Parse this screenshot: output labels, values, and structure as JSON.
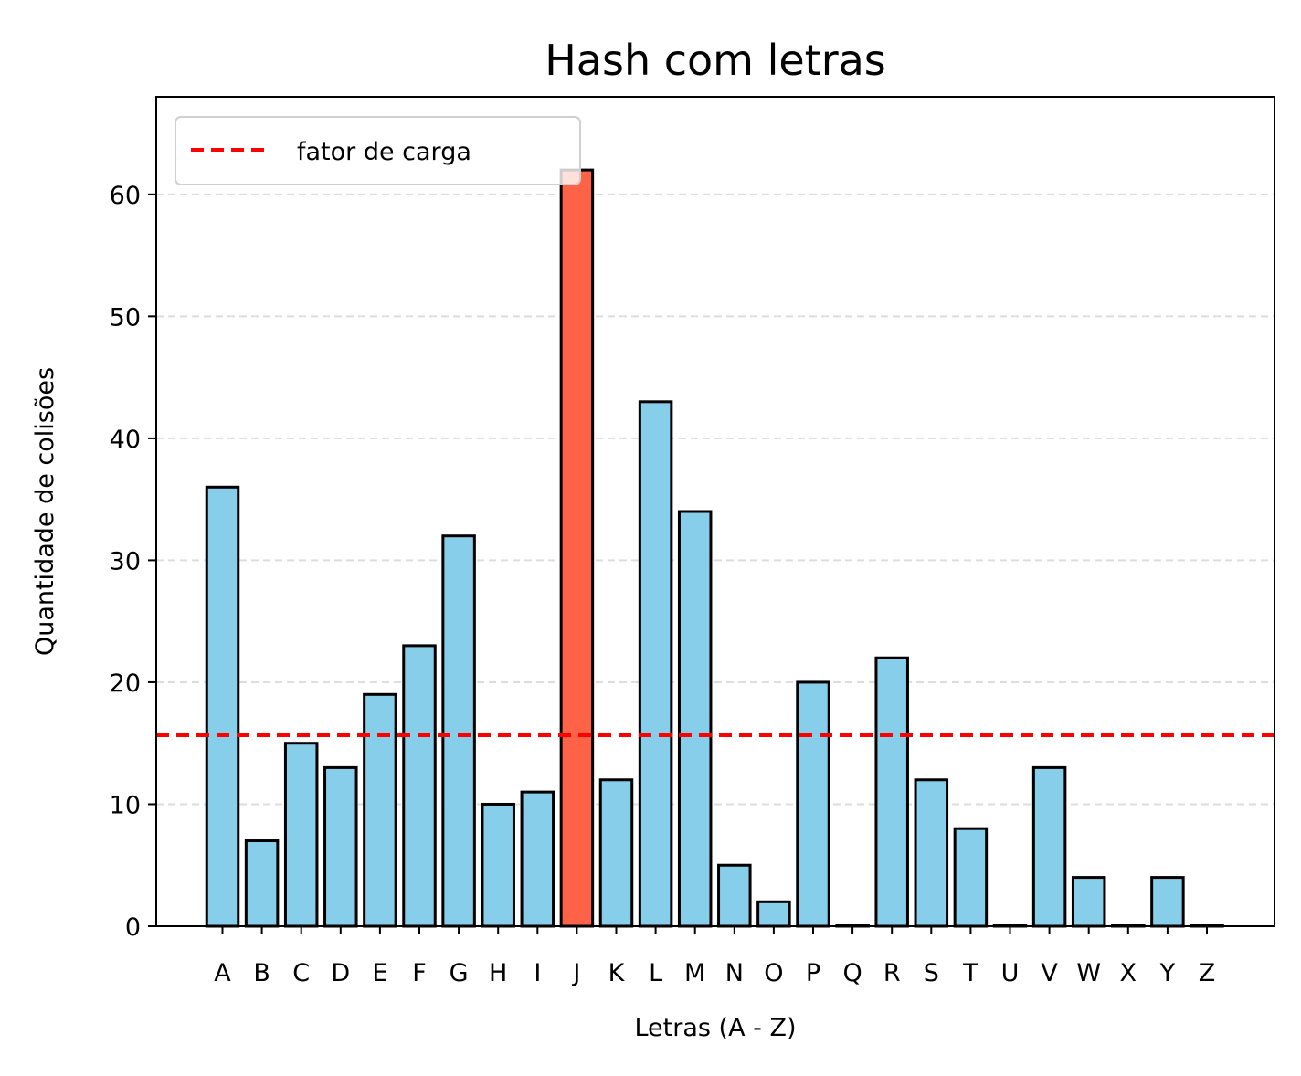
{
  "chart_data": {
    "type": "bar",
    "title": "Hash com letras",
    "xlabel": "Letras (A - Z)",
    "ylabel": "Quantidade de colisões",
    "categories": [
      "A",
      "B",
      "C",
      "D",
      "E",
      "F",
      "G",
      "H",
      "I",
      "J",
      "K",
      "L",
      "M",
      "N",
      "O",
      "P",
      "Q",
      "R",
      "S",
      "T",
      "U",
      "V",
      "W",
      "X",
      "Y",
      "Z"
    ],
    "values": [
      36,
      7,
      15,
      13,
      19,
      23,
      32,
      10,
      11,
      62,
      12,
      43,
      34,
      5,
      2,
      20,
      0,
      22,
      12,
      8,
      0,
      13,
      4,
      0,
      4,
      0
    ],
    "highlight_category": "J",
    "ylim": [
      0,
      68
    ],
    "yticks": [
      0,
      10,
      20,
      30,
      40,
      50,
      60
    ],
    "reference_line": {
      "label": "fator de carga",
      "value": 15.65,
      "style": "dashed",
      "color": "#ff0000"
    },
    "grid": "y-axis, dashed, light gray",
    "legend": {
      "placement": "top-left",
      "entries": [
        "fator de carga"
      ]
    },
    "colors": {
      "bar": "#87ceeb",
      "highlight": "#ff6347",
      "edge": "#000000",
      "grid": "#dddddd"
    }
  }
}
